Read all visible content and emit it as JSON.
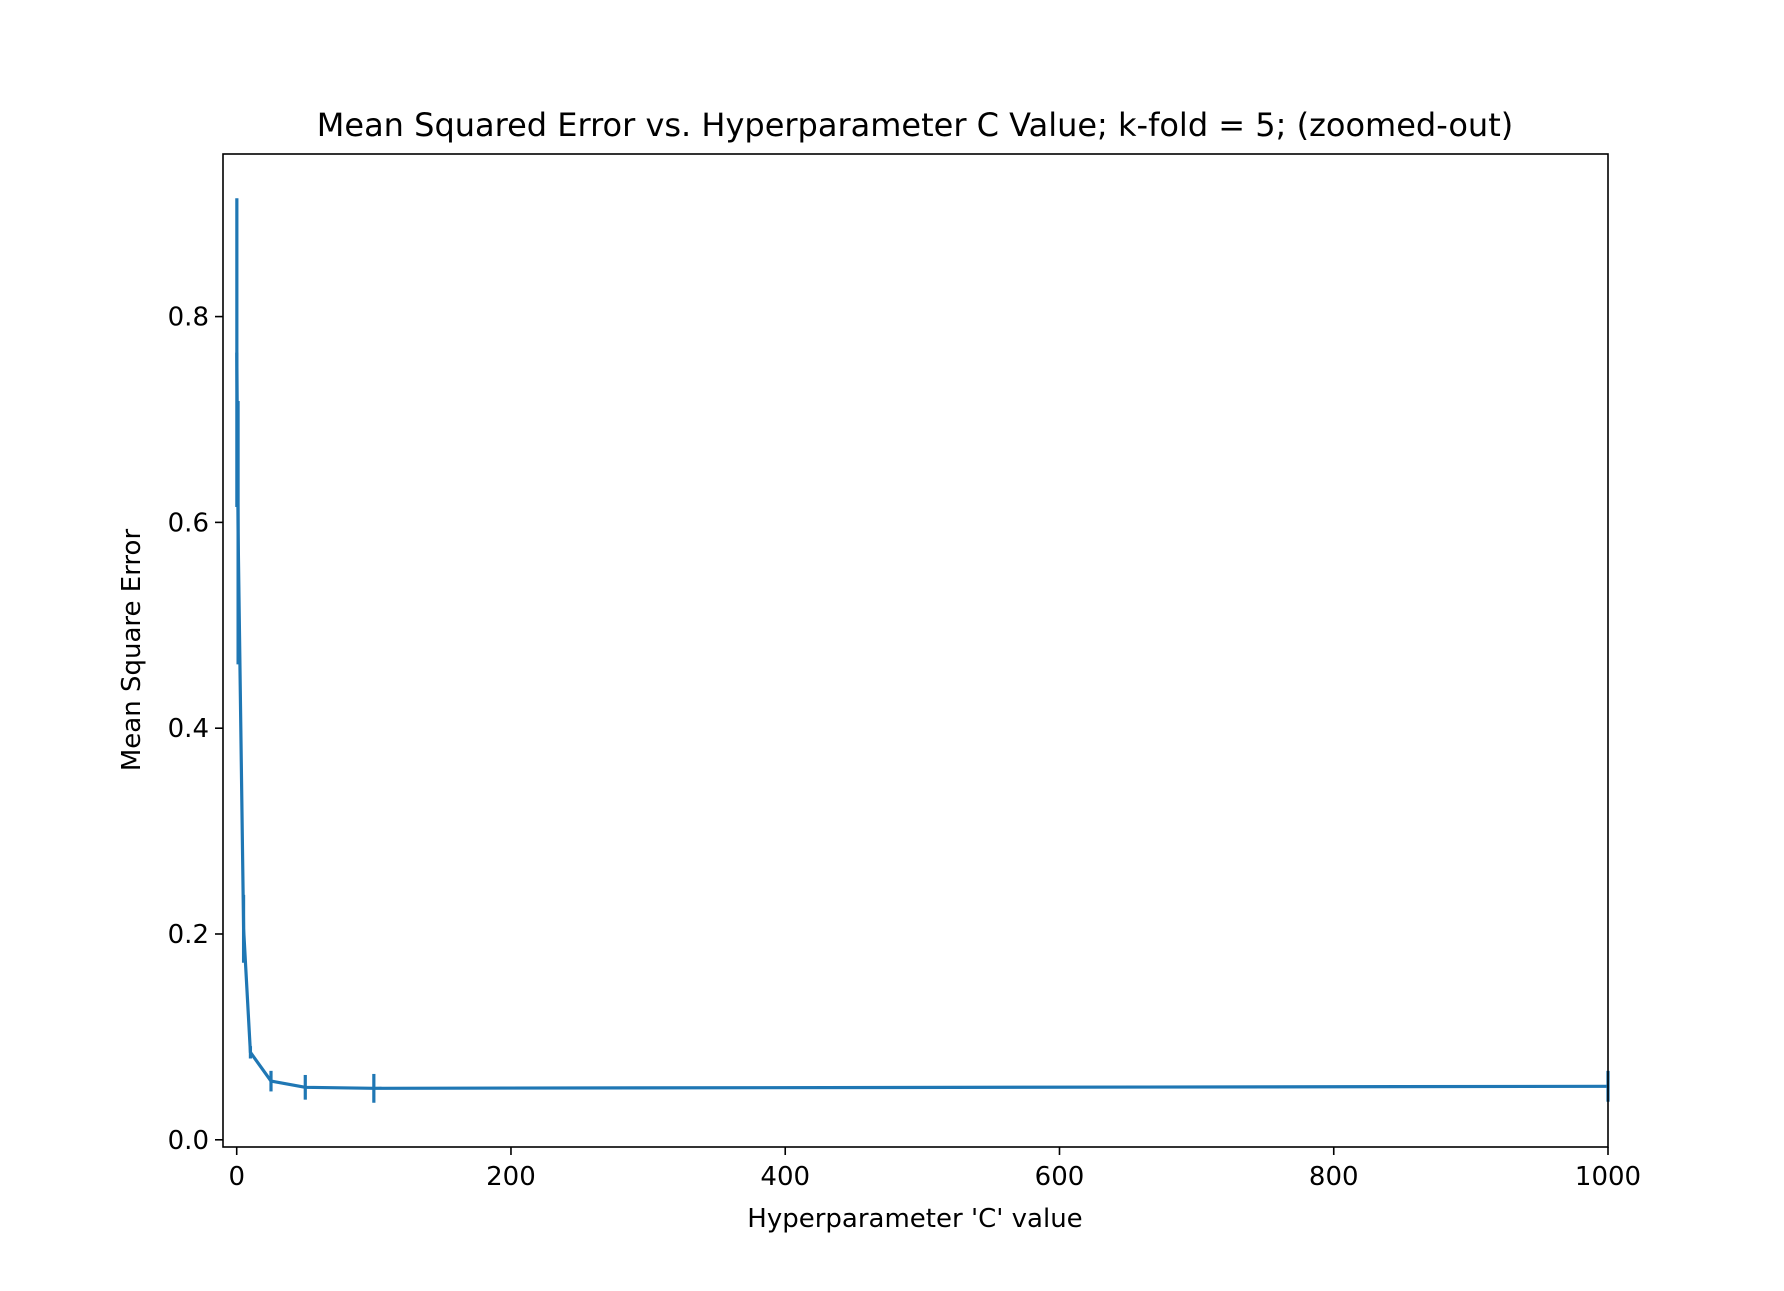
{
  "chart_data": {
    "type": "line",
    "title": "Mean Squared Error vs. Hyperparameter C Value; k-fold = 5; (zoomed-out)",
    "xlabel": "Hyperparameter 'C' value",
    "ylabel": "Mean Square Error",
    "xlim": [
      -10,
      1000
    ],
    "ylim": [
      -0.007,
      0.958
    ],
    "xticks": [
      0,
      200,
      400,
      600,
      800,
      1000
    ],
    "xtick_labels": [
      "0",
      "200",
      "400",
      "600",
      "800",
      "1000"
    ],
    "yticks": [
      0.0,
      0.2,
      0.4,
      0.6,
      0.8
    ],
    "ytick_labels": [
      "0.0",
      "0.2",
      "0.4",
      "0.6",
      "0.8"
    ],
    "grid": false,
    "series": [
      {
        "x": [
          0.1,
          1,
          5,
          10,
          25,
          50,
          100,
          1000
        ],
        "y": [
          0.765,
          0.59,
          0.205,
          0.085,
          0.057,
          0.051,
          0.05,
          0.052
        ],
        "yerr": [
          0.15,
          0.128,
          0.033,
          0.006,
          0.01,
          0.012,
          0.014,
          0.015
        ],
        "color": "#1f77b4"
      }
    ]
  }
}
